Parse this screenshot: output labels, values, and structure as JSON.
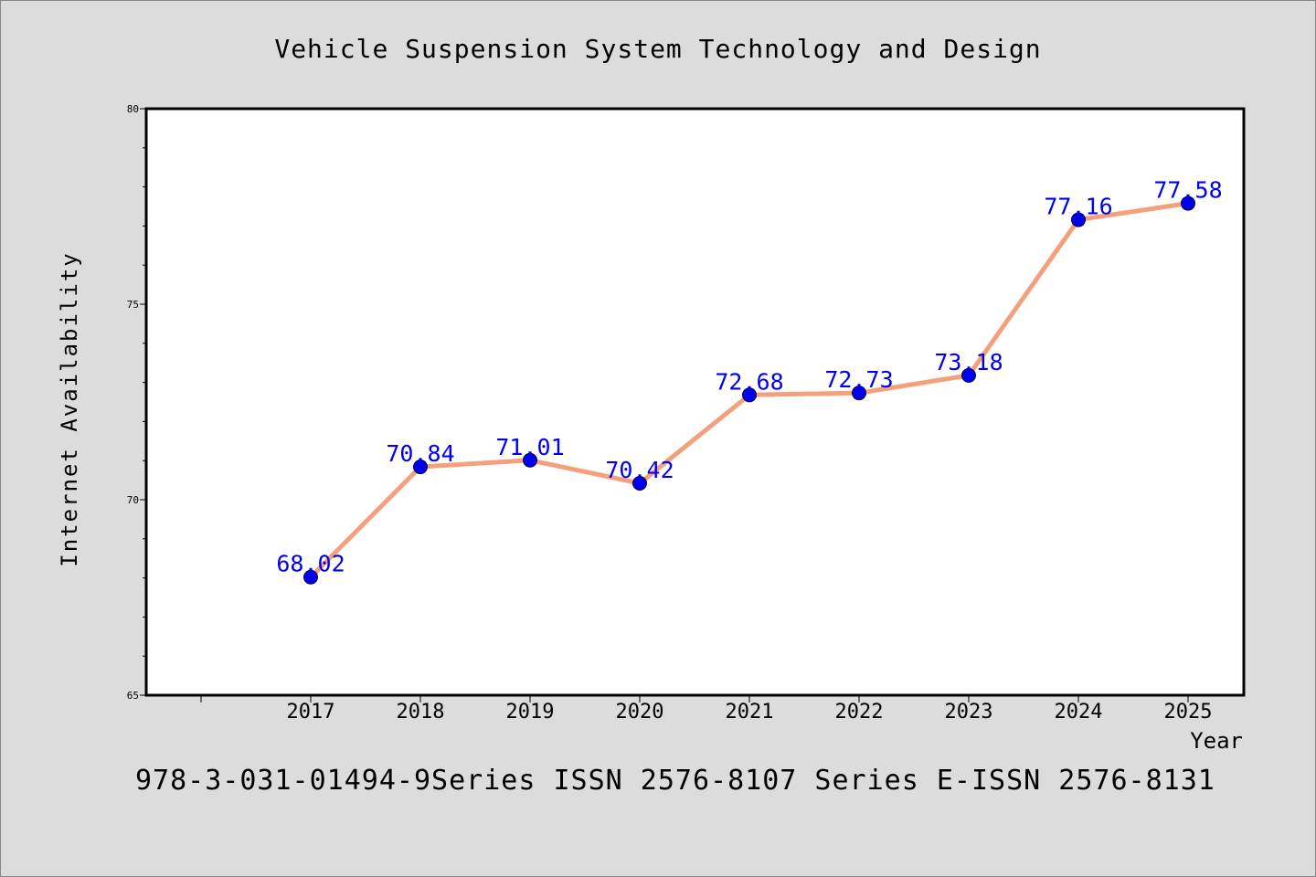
{
  "chart_data": {
    "type": "line",
    "title": "Vehicle Suspension System Technology and Design",
    "xlabel": "Year",
    "ylabel": "Internet Availability",
    "x": [
      "2017",
      "2018",
      "2019",
      "2020",
      "2021",
      "2022",
      "2023",
      "2024",
      "2025"
    ],
    "series": [
      {
        "values": [
          68.02,
          70.84,
          71.01,
          70.42,
          72.68,
          72.73,
          73.18,
          77.16,
          77.58
        ],
        "data_labels": [
          "68.02",
          "70.84",
          "71.01",
          "70.42",
          "72.68",
          "72.73",
          "73.18",
          "77.16",
          "77.58"
        ],
        "line_color": "#f4a07c",
        "marker_color": "#0000ee",
        "label_color": "#0000ee"
      }
    ],
    "ylim": [
      65,
      80
    ],
    "yticks": [
      "65",
      "70",
      "75",
      "80"
    ],
    "grid": false,
    "footnote": "978-3-031-01494-9Series ISSN 2576-8107 Series E-ISSN 2576-8131"
  }
}
